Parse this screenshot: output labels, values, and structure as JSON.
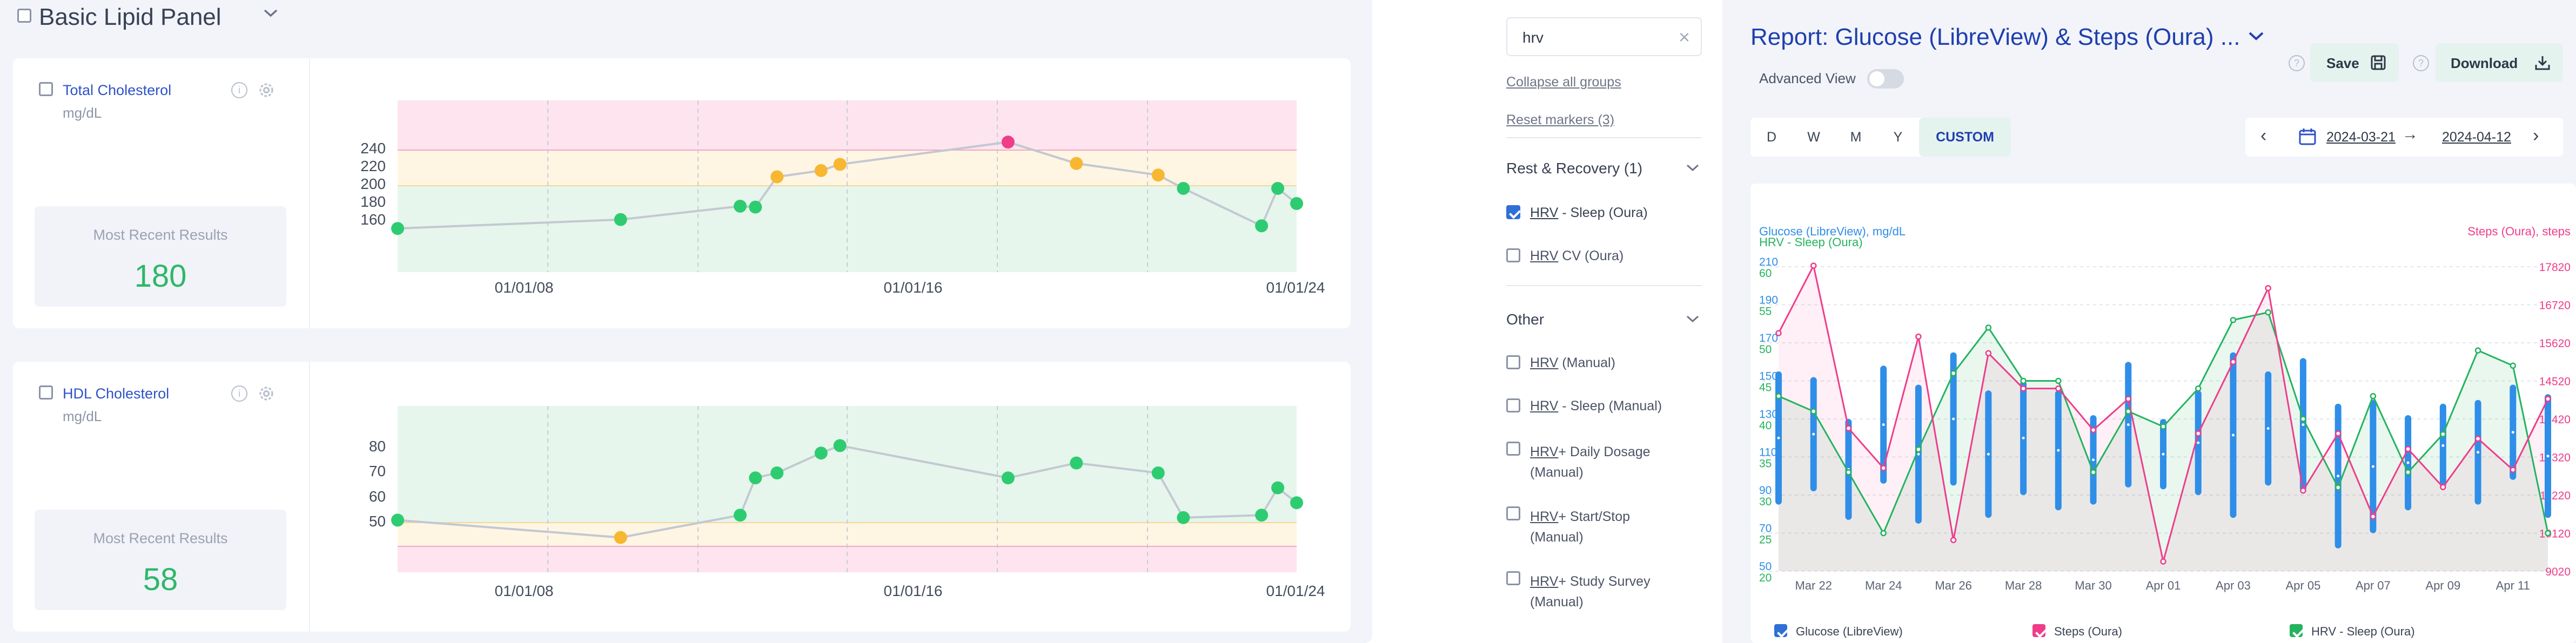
{
  "panel": {
    "title": "Basic Lipid Panel",
    "markers": [
      {
        "name": "Total Cholesterol",
        "unit": "mg/dL",
        "recent_label": "Most Recent Results",
        "recent_value": "180",
        "y_ticks": [
          "240",
          "220",
          "200",
          "180",
          "160"
        ],
        "x_ticks": [
          "01/01/08",
          "01/01/16",
          "01/01/24"
        ],
        "points": [
          {
            "value": 152,
            "status": "normal"
          },
          {
            "value": 162,
            "status": "normal"
          },
          {
            "value": 177,
            "status": "normal"
          },
          {
            "value": 176,
            "status": "normal"
          },
          {
            "value": 210,
            "status": "borderline"
          },
          {
            "value": 217,
            "status": "borderline"
          },
          {
            "value": 224,
            "status": "borderline"
          },
          {
            "value": 249,
            "status": "high"
          },
          {
            "value": 225,
            "status": "borderline"
          },
          {
            "value": 212,
            "status": "borderline"
          },
          {
            "value": 197,
            "status": "normal"
          },
          {
            "value": 155,
            "status": "normal"
          },
          {
            "value": 197,
            "status": "normal"
          },
          {
            "value": 180,
            "status": "normal"
          }
        ]
      },
      {
        "name": "HDL Cholesterol",
        "unit": "mg/dL",
        "recent_label": "Most Recent Results",
        "recent_value": "58",
        "y_ticks": [
          "80",
          "70",
          "60",
          "50"
        ],
        "x_ticks": [
          "01/01/08",
          "01/01/16",
          "01/01/24"
        ],
        "points": [
          {
            "value": 51,
            "status": "normal"
          },
          {
            "value": 44,
            "status": "borderline"
          },
          {
            "value": 53,
            "status": "normal"
          },
          {
            "value": 68,
            "status": "normal"
          },
          {
            "value": 70,
            "status": "normal"
          },
          {
            "value": 78,
            "status": "normal"
          },
          {
            "value": 81,
            "status": "normal"
          },
          {
            "value": 68,
            "status": "normal"
          },
          {
            "value": 74,
            "status": "normal"
          },
          {
            "value": 70,
            "status": "normal"
          },
          {
            "value": 52,
            "status": "normal"
          },
          {
            "value": 53,
            "status": "normal"
          },
          {
            "value": 64,
            "status": "normal"
          },
          {
            "value": 58,
            "status": "normal"
          }
        ]
      }
    ]
  },
  "filter": {
    "search_value": "hrv",
    "collapse_label": "Collapse all groups",
    "reset_label": "Reset markers (3)",
    "groups": [
      {
        "title": "Rest & Recovery (1)",
        "items": [
          {
            "match": "HRV",
            "rest": " - Sleep (Oura)",
            "checked": true
          },
          {
            "match": "HRV",
            "rest": " CV (Oura)",
            "checked": false
          }
        ]
      },
      {
        "title": "Other",
        "items": [
          {
            "match": "HRV",
            "rest": " (Manual)",
            "checked": false
          },
          {
            "match": "HRV",
            "rest": " - Sleep (Manual)",
            "checked": false
          },
          {
            "match": "HRV",
            "rest": "+ Daily Dosage",
            "rest2": "(Manual)",
            "checked": false
          },
          {
            "match": "HRV",
            "rest": "+ Start/Stop",
            "rest2": "(Manual)",
            "checked": false
          },
          {
            "match": "HRV",
            "rest": "+ Study Survey",
            "rest2": "(Manual)",
            "checked": false
          }
        ]
      }
    ]
  },
  "report": {
    "title": "Report: Glucose (LibreView) & Steps (Oura) ...",
    "save_label": "Save",
    "download_label": "Download",
    "advanced_view_label": "Advanced View",
    "advanced_view_on": false,
    "ranges": [
      "D",
      "W",
      "M",
      "Y",
      "CUSTOM"
    ],
    "active_range": "CUSTOM",
    "date_start": "2024-03-21",
    "date_end": "2024-04-12",
    "colors": {
      "glucose": "#2f8ee8",
      "steps": "#ef3d8a",
      "hrv": "#25b35f",
      "title": "#1f3fae"
    }
  },
  "chart_data": {
    "type": "line",
    "left_axis_label_1": "Glucose (LibreView), mg/dL",
    "left_axis_label_2": "HRV - Sleep (Oura)",
    "right_axis_label": "Steps (Oura), steps",
    "glucose_ticks": [
      "210",
      "190",
      "170",
      "150",
      "130",
      "110",
      "90",
      "70",
      "50"
    ],
    "hrv_ticks": [
      "60",
      "55",
      "50",
      "45",
      "40",
      "35",
      "30",
      "25",
      "20"
    ],
    "steps_ticks": [
      "17820",
      "16720",
      "15620",
      "14520",
      "13420",
      "12320",
      "11220",
      "10120",
      "9020"
    ],
    "glucose_ylim": [
      50,
      210
    ],
    "hrv_ylim": [
      20,
      60
    ],
    "steps_ylim": [
      9020,
      17820
    ],
    "x_tick_labels": [
      "Mar 22",
      "Mar 24",
      "Mar 26",
      "Mar 28",
      "Mar 30",
      "Apr 01",
      "Apr 03",
      "Apr 05",
      "Apr 07",
      "Apr 09",
      "Apr 11"
    ],
    "x": [
      "2024-03-21",
      "2024-03-22",
      "2024-03-23",
      "2024-03-24",
      "2024-03-25",
      "2024-03-26",
      "2024-03-27",
      "2024-03-28",
      "2024-03-29",
      "2024-03-30",
      "2024-03-31",
      "2024-04-01",
      "2024-04-02",
      "2024-04-03",
      "2024-04-04",
      "2024-04-05",
      "2024-04-06",
      "2024-04-07",
      "2024-04-08",
      "2024-04-09",
      "2024-04-10",
      "2024-04-11",
      "2024-04-12"
    ],
    "glucose_ranges": [
      [
        85,
        155
      ],
      [
        92,
        152
      ],
      [
        77,
        130
      ],
      [
        96,
        158
      ],
      [
        75,
        148
      ],
      [
        95,
        165
      ],
      [
        78,
        145
      ],
      [
        90,
        150
      ],
      [
        82,
        145
      ],
      [
        85,
        132
      ],
      [
        94,
        160
      ],
      [
        93,
        130
      ],
      [
        90,
        145
      ],
      [
        78,
        165
      ],
      [
        95,
        155
      ],
      [
        92,
        162
      ],
      [
        62,
        138
      ],
      [
        70,
        140
      ],
      [
        82,
        132
      ],
      [
        94,
        138
      ],
      [
        85,
        140
      ],
      [
        98,
        148
      ],
      [
        78,
        143
      ]
    ],
    "series": [
      {
        "name": "Steps (Oura)",
        "values": [
          15900,
          17850,
          13150,
          12000,
          15800,
          9920,
          15320,
          14300,
          14300,
          13100,
          14000,
          9300,
          13000,
          15070,
          17200,
          11350,
          13000,
          10600,
          12550,
          11450,
          12850,
          11950,
          14000
        ]
      },
      {
        "name": "HRV - Sleep (Oura)",
        "values": [
          43,
          41,
          33,
          25,
          36,
          46,
          52,
          45,
          45,
          33,
          41,
          39,
          44,
          53,
          54,
          40,
          31,
          43,
          33,
          38,
          49,
          47,
          25
        ]
      }
    ]
  },
  "legend": [
    {
      "label": "Glucose (LibreView)",
      "color": "#2f6fd6"
    },
    {
      "label": "Steps (Oura)",
      "color": "#ef3d8a"
    },
    {
      "label": "HRV - Sleep (Oura)",
      "color": "#25b35f"
    }
  ]
}
